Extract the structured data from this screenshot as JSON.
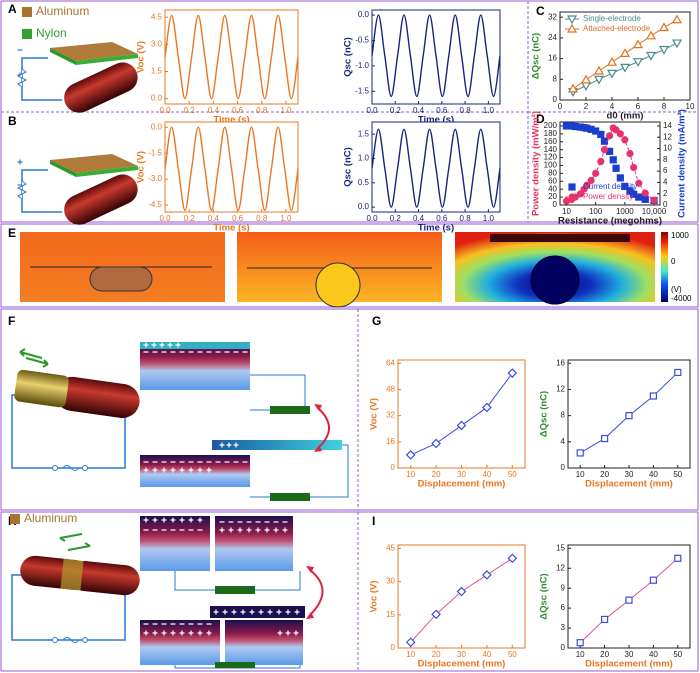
{
  "panel_labels": [
    "A",
    "B",
    "C",
    "D",
    "E",
    "F",
    "G",
    "H",
    "I"
  ],
  "legend_a": [
    {
      "label": "Aluminum",
      "color": "#a8732f"
    },
    {
      "label": "Nylon",
      "color": "#34a034"
    }
  ],
  "legend_f": [
    {
      "label": "Aluminum",
      "color": "#a8732f"
    }
  ],
  "colorbar": {
    "ticks": [
      "1000",
      "0",
      "-4000"
    ],
    "unit": "(V)"
  },
  "chart_data": [
    {
      "type": "line",
      "xlabel": "Time (s)",
      "ylabel": "Voc (V)",
      "xlabel_color": "#e87722",
      "ylabel_color": "#e87722",
      "axis_color": "#e87722",
      "x": [
        0,
        0.055,
        0.11,
        0.165,
        0.22,
        0.275,
        0.33,
        0.385,
        0.44,
        0.495,
        0.55,
        0.605,
        0.66,
        0.715,
        0.77,
        0.825,
        0.88,
        0.935,
        0.99,
        1.045,
        1.1
      ],
      "xlim": [
        0,
        1.1
      ],
      "xticks": [
        {
          "value": 0,
          "label": "0.0"
        },
        0.2,
        0.4,
        0.6,
        0.8,
        {
          "value": 1,
          "label": "1.0"
        }
      ],
      "ylim": [
        -0.3,
        4.9
      ],
      "yticks": [
        {
          "value": 0,
          "label": "0.0"
        },
        1.5,
        {
          "value": 3,
          "label": "3.0"
        },
        4.5
      ],
      "series": [
        {
          "color": "#e87722",
          "smooth": true,
          "values": [
            2.3,
            4.6,
            2.3,
            0,
            2.3,
            4.6,
            2.3,
            0,
            2.3,
            4.6,
            2.3,
            0,
            2.3,
            4.6,
            2.3,
            0,
            2.3,
            4.6,
            2.3,
            0,
            2.3
          ]
        }
      ]
    },
    {
      "type": "line",
      "xlabel": "Time (s)",
      "ylabel": "Qsc (nC)",
      "xlabel_color": "#1a237e",
      "ylabel_color": "#1a237e",
      "axis_color": "#1a237e",
      "x": [
        0,
        0.055,
        0.11,
        0.165,
        0.22,
        0.275,
        0.33,
        0.385,
        0.44,
        0.495,
        0.55,
        0.605,
        0.66,
        0.715,
        0.77,
        0.825,
        0.88,
        0.935,
        0.99,
        1.045,
        1.1
      ],
      "xlim": [
        0,
        1.1
      ],
      "xticks": [
        {
          "value": 0,
          "label": "0.0"
        },
        0.2,
        0.4,
        0.6,
        0.8,
        {
          "value": 1,
          "label": "1.0"
        }
      ],
      "ylim": [
        -1.75,
        0.1
      ],
      "yticks": [
        {
          "value": 0,
          "label": "0.0"
        },
        -0.5,
        {
          "value": -1,
          "label": "-1.0"
        },
        -1.5
      ],
      "series": [
        {
          "color": "#1a237e",
          "smooth": true,
          "values": [
            -0.8,
            0,
            -0.8,
            -1.6,
            -0.8,
            0,
            -0.8,
            -1.6,
            -0.8,
            0,
            -0.8,
            -1.6,
            -0.8,
            0,
            -0.8,
            -1.6,
            -0.8,
            0,
            -0.8,
            -1.6,
            -0.8
          ]
        }
      ]
    },
    {
      "type": "line",
      "xlabel": "Time (s)",
      "ylabel": "Voc (V)",
      "xlabel_color": "#e87722",
      "ylabel_color": "#e87722",
      "axis_color": "#e87722",
      "x": [
        0,
        0.055,
        0.11,
        0.165,
        0.22,
        0.275,
        0.33,
        0.385,
        0.44,
        0.495,
        0.55,
        0.605,
        0.66,
        0.715,
        0.77,
        0.825,
        0.88,
        0.935,
        0.99,
        1.045,
        1.1
      ],
      "xlim": [
        0,
        1.1
      ],
      "xticks": [
        {
          "value": 0,
          "label": "0.0"
        },
        0.2,
        0.4,
        0.6,
        0.8,
        {
          "value": 1,
          "label": "1.0"
        }
      ],
      "ylim": [
        -4.9,
        0.3
      ],
      "yticks": [
        {
          "value": 0,
          "label": "0.0"
        },
        -1.5,
        {
          "value": -3,
          "label": "-3.0"
        },
        -4.5
      ],
      "series": [
        {
          "color": "#e87722",
          "smooth": true,
          "values": [
            -2.4,
            0,
            -2.4,
            -4.8,
            -2.4,
            0,
            -2.4,
            -4.8,
            -2.4,
            0,
            -2.4,
            -4.8,
            -2.4,
            0,
            -2.4,
            -4.8,
            -2.4,
            0,
            -2.4,
            -4.8,
            -2.4
          ]
        }
      ]
    },
    {
      "type": "line",
      "xlabel": "Time (s)",
      "ylabel": "Qsc (nC)",
      "xlabel_color": "#1a237e",
      "ylabel_color": "#1a237e",
      "axis_color": "#1a237e",
      "x": [
        0,
        0.055,
        0.11,
        0.165,
        0.22,
        0.275,
        0.33,
        0.385,
        0.44,
        0.495,
        0.55,
        0.605,
        0.66,
        0.715,
        0.77,
        0.825,
        0.88,
        0.935,
        0.99,
        1.045,
        1.1
      ],
      "xlim": [
        0,
        1.1
      ],
      "xticks": [
        {
          "value": 0,
          "label": "0.0"
        },
        0.2,
        0.4,
        0.6,
        0.8,
        {
          "value": 1,
          "label": "1.0"
        }
      ],
      "ylim": [
        -0.1,
        1.75
      ],
      "yticks": [
        {
          "value": 0,
          "label": "0.0"
        },
        0.5,
        {
          "value": 1,
          "label": "1.0"
        },
        1.5
      ],
      "series": [
        {
          "color": "#1a237e",
          "smooth": true,
          "values": [
            0.8,
            1.6,
            0.8,
            0,
            0.8,
            1.6,
            0.8,
            0,
            0.8,
            1.6,
            0.8,
            0,
            0.8,
            1.6,
            0.8,
            0,
            0.8,
            1.6,
            0.8,
            0,
            0.8
          ]
        }
      ]
    },
    {
      "type": "line",
      "xlabel": "d0 (mm)",
      "ylabel": "ΔQsc (nC)",
      "xlabel_color": "#222222",
      "ylabel_color": "#2e8b2e",
      "axis_color": "#222222",
      "x": [
        1,
        2,
        3,
        4,
        5,
        6,
        7,
        8,
        9
      ],
      "xlim": [
        0,
        10
      ],
      "xticks": [
        0,
        2,
        4,
        6,
        8,
        10
      ],
      "ylim": [
        0,
        34
      ],
      "yticks": [
        0,
        8,
        16,
        24,
        32
      ],
      "legend": "upper left",
      "series": [
        {
          "name": "Single-electrode",
          "color": "#4a8a8a",
          "marker": "tri-down",
          "linestyle": "solid",
          "values": [
            3.2,
            5.5,
            8,
            10.3,
            12.6,
            14.8,
            17.2,
            19.5,
            22
          ]
        },
        {
          "name": "Attached-electrode",
          "color": "#e07020",
          "marker": "tri-up",
          "linestyle": "solid",
          "values": [
            4.3,
            7.8,
            11.2,
            14.6,
            18,
            21.4,
            24.8,
            28,
            31
          ]
        }
      ]
    },
    {
      "type": "line",
      "xscale": "log",
      "xlabel": "Resistance (megohms)",
      "ylabel": "Power density (mW/m²)",
      "y2label": "Current density (mA/m²)",
      "xlabel_color": "#222222",
      "ylabel_color": "#e8336a",
      "y2label_color": "#1a3fd0",
      "axis_color": "#222222",
      "x": [
        10,
        15,
        20,
        30,
        40,
        50,
        70,
        100,
        150,
        200,
        300,
        400,
        500,
        700,
        1000,
        1500,
        2000,
        3000,
        5000,
        10000
      ],
      "xlim": [
        6,
        16000
      ],
      "xticks": [
        10,
        100,
        1000,
        {
          "value": 10000,
          "label": "10,000"
        }
      ],
      "ylim": [
        0,
        210
      ],
      "yticks": [
        0,
        20,
        40,
        60,
        80,
        100,
        120,
        140,
        160,
        180,
        200
      ],
      "y2lim": [
        0,
        14.7
      ],
      "y2ticks": [
        0,
        2,
        4,
        6,
        8,
        10,
        12,
        14
      ],
      "legend": "lower left",
      "series": [
        {
          "name": "Current density",
          "axis": "y2",
          "color": "#1a3fd0",
          "marker": "square",
          "marker_filled": true,
          "linestyle": "none",
          "values": [
            14,
            14,
            13.9,
            13.8,
            13.7,
            13.6,
            13.4,
            13.1,
            12.5,
            11.3,
            9.5,
            8,
            6.5,
            4.8,
            3.3,
            2.5,
            1.9,
            1.4,
            1,
            0.8
          ]
        },
        {
          "name": "Power density",
          "color": "#e8336a",
          "marker": "circle",
          "marker_filled": true,
          "linestyle": "dashed",
          "values": [
            10,
            14,
            20,
            28,
            40,
            50,
            62,
            80,
            110,
            140,
            175,
            195,
            190,
            180,
            165,
            130,
            95,
            55,
            30,
            12
          ]
        }
      ]
    },
    {
      "type": "line",
      "xlabel": "Displacement (mm)",
      "ylabel": "Voc (V)",
      "xlabel_color": "#e87722",
      "ylabel_color": "#e87722",
      "axis_color": "#e87722",
      "x": [
        10,
        20,
        30,
        40,
        50
      ],
      "xlim": [
        5,
        55
      ],
      "xticks": [
        10,
        20,
        30,
        40,
        50
      ],
      "ylim": [
        0,
        66
      ],
      "yticks": [
        0,
        16,
        32,
        48,
        64
      ],
      "series": [
        {
          "color": "#3a4ee0",
          "marker": "diamond",
          "linestyle": "solid",
          "values": [
            8,
            15,
            26,
            37,
            58
          ]
        }
      ]
    },
    {
      "type": "line",
      "xlabel": "Displacement (mm)",
      "ylabel": "ΔQsc (nC)",
      "xlabel_color": "#e87722",
      "ylabel_color": "#2e8b2e",
      "axis_color": "#222222",
      "x": [
        10,
        20,
        30,
        40,
        50
      ],
      "xlim": [
        5,
        55
      ],
      "xticks": [
        10,
        20,
        30,
        40,
        50
      ],
      "ylim": [
        0,
        16.5
      ],
      "yticks": [
        0,
        4,
        8,
        12,
        16
      ],
      "series": [
        {
          "color": "#3a4ee0",
          "marker": "square",
          "linestyle": "solid",
          "values": [
            2.3,
            4.5,
            8,
            11,
            14.6
          ]
        }
      ]
    },
    {
      "type": "line",
      "xlabel": "Displacement (mm)",
      "ylabel": "Voc (V)",
      "xlabel_color": "#e87722",
      "ylabel_color": "#e87722",
      "axis_color": "#e87722",
      "x": [
        10,
        20,
        30,
        40,
        50
      ],
      "xlim": [
        5,
        55
      ],
      "xticks": [
        10,
        20,
        30,
        40,
        50
      ],
      "ylim": [
        0,
        46.5
      ],
      "yticks": [
        0,
        15,
        30,
        45
      ],
      "series": [
        {
          "color": "#e8508a",
          "marker_color": "#3a4ee0",
          "marker": "diamond",
          "linestyle": "solid",
          "values": [
            2.6,
            15.2,
            25.5,
            33,
            40.5
          ]
        }
      ]
    },
    {
      "type": "line",
      "xlabel": "Displacement (mm)",
      "ylabel": "ΔQsc (nC)",
      "xlabel_color": "#e87722",
      "ylabel_color": "#2e8b2e",
      "axis_color": "#222222",
      "x": [
        10,
        20,
        30,
        40,
        50
      ],
      "xlim": [
        5,
        55
      ],
      "xticks": [
        10,
        20,
        30,
        40,
        50
      ],
      "ylim": [
        0,
        15.5
      ],
      "yticks": [
        0,
        3,
        6,
        9,
        12,
        15
      ],
      "series": [
        {
          "color": "#e8508a",
          "marker_color": "#3a4ee0",
          "marker": "square",
          "linestyle": "solid",
          "values": [
            0.8,
            4.3,
            7.2,
            10.2,
            13.5
          ]
        }
      ]
    }
  ]
}
